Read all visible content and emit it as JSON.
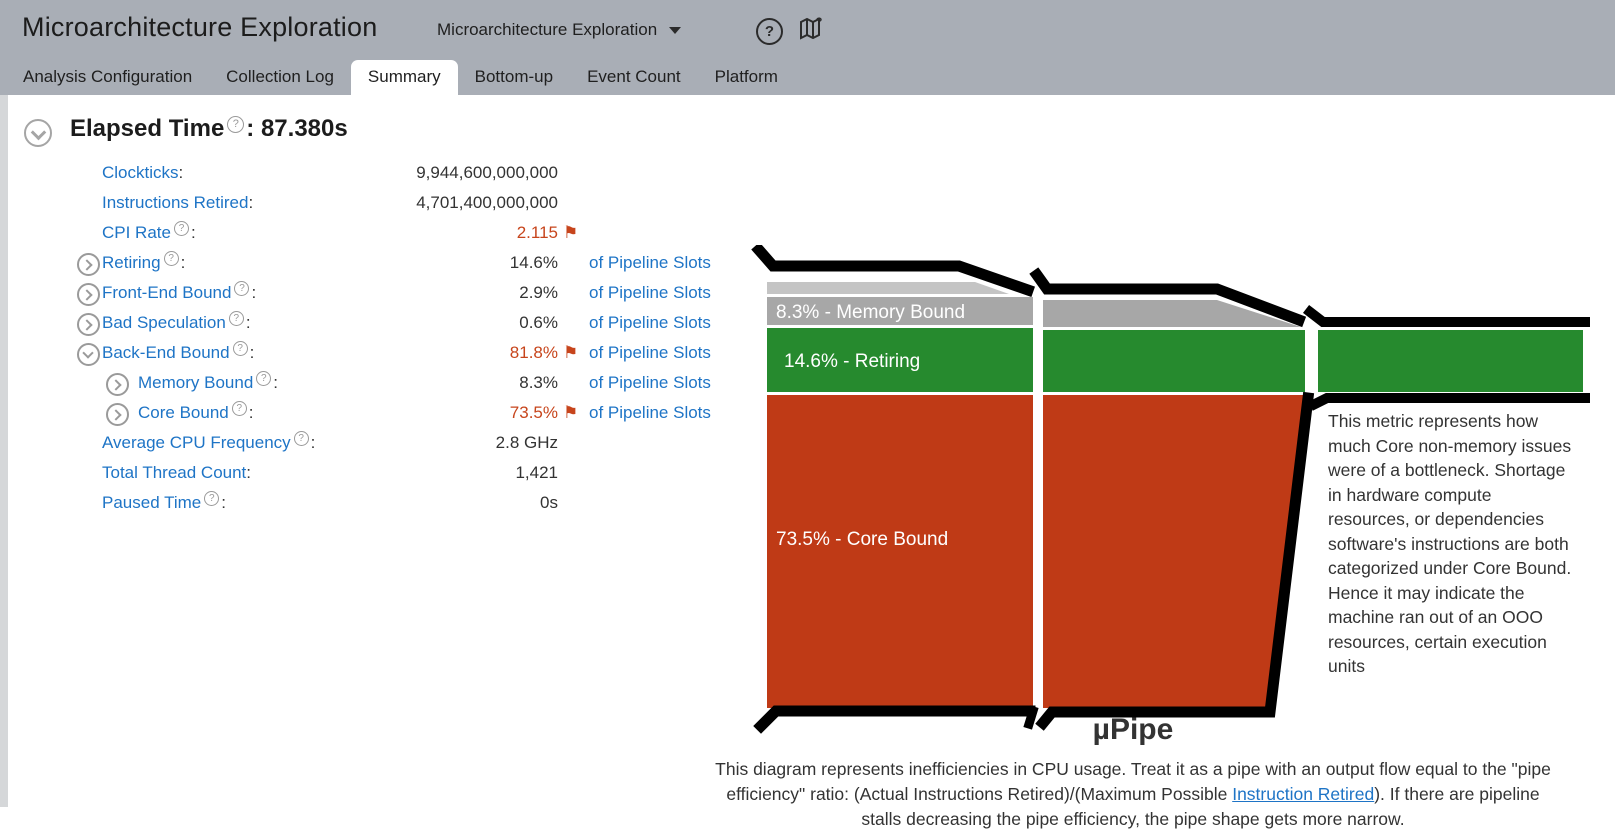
{
  "header": {
    "title": "Microarchitecture Exploration",
    "analysis_selector": "Microarchitecture Exploration",
    "tabs": [
      "Analysis Configuration",
      "Collection Log",
      "Summary",
      "Bottom-up",
      "Event Count",
      "Platform"
    ],
    "active_tab": "Summary",
    "help_icon": "?",
    "guide_icon": "open-map-with-question-mark"
  },
  "summary": {
    "section_title": "Elapsed Time",
    "section_value": ": 87.380s",
    "metrics": [
      {
        "label": "Clockticks",
        "value": "9,944,600,000,000",
        "help": false,
        "expand": "none",
        "nested": false,
        "flag": false,
        "red": false,
        "unit": ""
      },
      {
        "label": "Instructions Retired",
        "value": "4,701,400,000,000",
        "help": false,
        "expand": "none",
        "nested": false,
        "flag": false,
        "red": false,
        "unit": ""
      },
      {
        "label": "CPI Rate",
        "value": "2.115",
        "help": true,
        "expand": "none",
        "nested": false,
        "flag": true,
        "red": true,
        "unit": ""
      },
      {
        "label": "Retiring",
        "value": "14.6%",
        "help": true,
        "expand": "collapsed",
        "nested": false,
        "flag": false,
        "red": false,
        "unit": "of Pipeline Slots"
      },
      {
        "label": "Front-End Bound",
        "value": "2.9%",
        "help": true,
        "expand": "collapsed",
        "nested": false,
        "flag": false,
        "red": false,
        "unit": "of Pipeline Slots"
      },
      {
        "label": "Bad Speculation",
        "value": "0.6%",
        "help": true,
        "expand": "collapsed",
        "nested": false,
        "flag": false,
        "red": false,
        "unit": "of Pipeline Slots"
      },
      {
        "label": "Back-End Bound",
        "value": "81.8%",
        "help": true,
        "expand": "expanded",
        "nested": false,
        "flag": true,
        "red": true,
        "unit": "of Pipeline Slots"
      },
      {
        "label": "Memory Bound",
        "value": "8.3%",
        "help": true,
        "expand": "collapsed",
        "nested": true,
        "flag": false,
        "red": false,
        "unit": "of Pipeline Slots"
      },
      {
        "label": "Core Bound",
        "value": "73.5%",
        "help": true,
        "expand": "collapsed",
        "nested": true,
        "flag": true,
        "red": true,
        "unit": "of Pipeline Slots"
      },
      {
        "label": "Average CPU Frequency",
        "value": "2.8 GHz",
        "help": true,
        "expand": "none",
        "nested": false,
        "flag": false,
        "red": false,
        "unit": ""
      },
      {
        "label": "Total Thread Count",
        "value": "1,421",
        "help": false,
        "expand": "none",
        "nested": false,
        "flag": false,
        "red": false,
        "unit": ""
      },
      {
        "label": "Paused Time",
        "value": "0s",
        "help": true,
        "expand": "none",
        "nested": false,
        "flag": false,
        "red": false,
        "unit": ""
      }
    ]
  },
  "upipe": {
    "title": "µPipe",
    "bands": [
      {
        "label": "8.3% - Memory Bound",
        "color": "#a7a7a7"
      },
      {
        "label": "14.6% - Retiring",
        "color": "#268a2e"
      },
      {
        "label": "73.5% - Core Bound",
        "color": "#bf3a16"
      }
    ],
    "tooltip": "This metric represents how much Core non-memory issues were of a bottleneck. Shortage in hardware compute resources, or dependencies software's instructions are both categorized under Core Bound. Hence it may indicate the machine ran out of an OOO resources, certain execution units",
    "description_pre": "This diagram represents inefficiencies in CPU usage. Treat it as a pipe with an output flow equal to the \"pipe efficiency\" ratio: (Actual Instructions Retired)/(Maximum Possible ",
    "description_link": "Instruction Retired",
    "description_post": "). If there are pipeline stalls decreasing the pipe efficiency, the pipe shape gets more narrow."
  },
  "colors": {
    "header_bg": "#a9aeb6",
    "accent_blue": "#1e74c6",
    "flag_red": "#c7451c",
    "pipe_green": "#268a2e",
    "pipe_red": "#bf3a16",
    "pipe_gray": "#a7a7a7",
    "pipe_lightgray": "#c4c4c4"
  }
}
